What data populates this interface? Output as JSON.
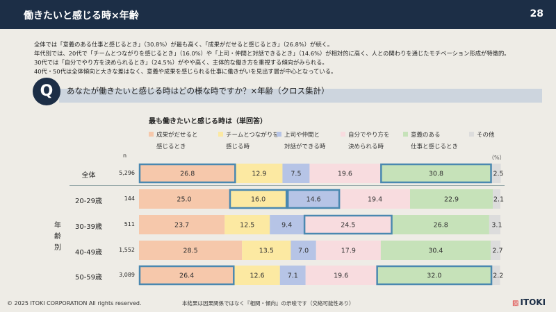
{
  "header": {
    "title": "働きたいと感じる時×年齢",
    "page": "28"
  },
  "summary": [
    "全体では「意義のある仕事と感じるとき」（30.8%）が最も高く、「成果がだせると感じるとき」（26.8%）が続く。",
    "年代別では、20代で「チームとつながりを感じるとき」（16.0%）や「上司・仲間と対話できるとき」（14.6%）が相対的に高く、人との関わりを通じたモチベーション形成が特徴的。",
    "30代では「自分でやり方を決められるとき」（24.5%）がやや高く、主体的な働き方を重視する傾向がみられる。",
    "40代・50代は全体傾向と大きな差はなく、意義や成果を感じられる仕事に働きがいを見出す層が中心となっている。"
  ],
  "question": {
    "icon": "Q",
    "text": "あなたが働きたいと感じる時はどの様な時ですか？×年齢（クロス集計）"
  },
  "chart_data": {
    "type": "bar",
    "stacked": true,
    "orientation": "horizontal",
    "title": "最も働きたいと感じる時は（単回答）",
    "n_label": "n",
    "unit_label": "（%）",
    "group_label": "年齢別",
    "series": [
      {
        "name": "成果がだせると",
        "name2": "感じるとき",
        "color": "#f6c8ab"
      },
      {
        "name": "チームとつながりを",
        "name2": "感じる時",
        "color": "#fce9a2"
      },
      {
        "name": "上司や仲間と",
        "name2": "対話ができる時",
        "color": "#b6c4e6"
      },
      {
        "name": "自分でやり方を",
        "name2": "決められる時",
        "color": "#f8dcdf"
      },
      {
        "name": "意義のある",
        "name2": "仕事と感じるとき",
        "color": "#c6e2b9"
      },
      {
        "name": "その他",
        "name2": "",
        "color": "#dcdcdc"
      }
    ],
    "rows": [
      {
        "label": "全体",
        "n": "5,296",
        "values": [
          26.8,
          12.9,
          7.5,
          19.6,
          30.8,
          2.5
        ],
        "highlight": [
          0,
          4
        ]
      },
      {
        "label": "20-29歳",
        "n": "144",
        "values": [
          25.0,
          16.0,
          14.6,
          19.4,
          22.9,
          2.1
        ],
        "highlight": [
          1,
          2
        ]
      },
      {
        "label": "30-39歳",
        "n": "511",
        "values": [
          23.7,
          12.5,
          9.4,
          24.5,
          26.8,
          3.1
        ],
        "highlight": [
          3
        ]
      },
      {
        "label": "40-49歳",
        "n": "1,552",
        "values": [
          28.5,
          13.5,
          7.0,
          17.9,
          30.4,
          2.7
        ],
        "highlight": []
      },
      {
        "label": "50-59歳",
        "n": "3,089",
        "values": [
          26.4,
          12.6,
          7.1,
          19.6,
          32.0,
          2.2
        ],
        "highlight": [
          0,
          4
        ]
      }
    ],
    "xlim": [
      0,
      100
    ],
    "highlight_color": "#4a88b0"
  },
  "footer": {
    "copyright": "© 2025 ITOKI CORPORATION  All rights reserved.",
    "note": "本結果は因果関係ではなく『相関・傾向』の示唆です（交絡可能性あり）",
    "logo": "ITOKI"
  }
}
